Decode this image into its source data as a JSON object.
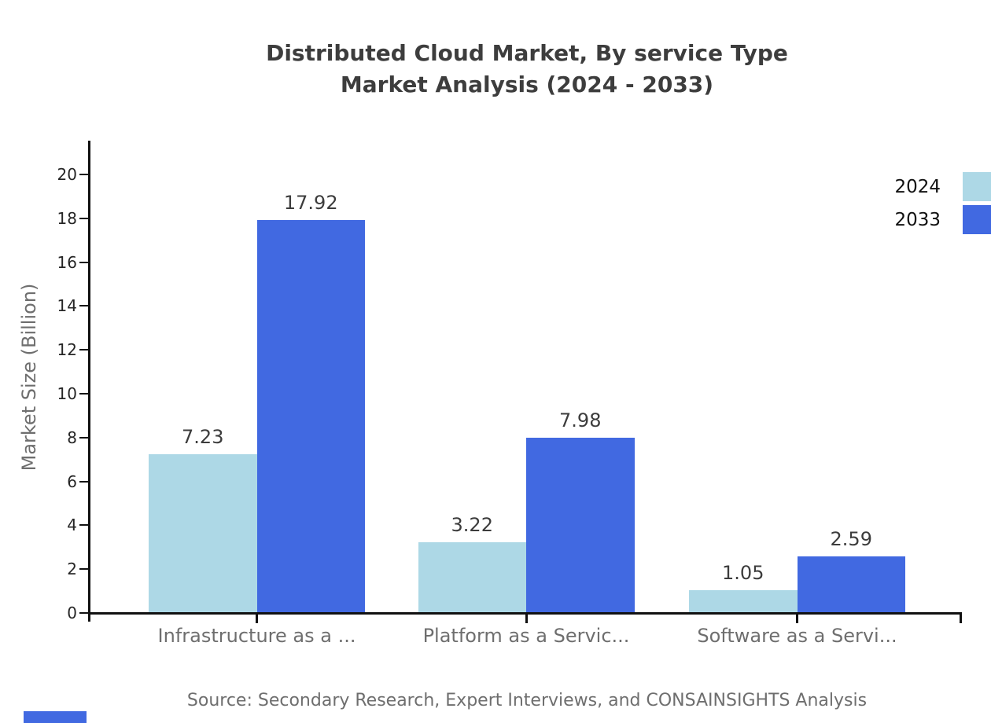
{
  "title": {
    "line1": "Distributed Cloud Market, By service Type",
    "line2": "Market Analysis (2024 - 2033)"
  },
  "chart_data": {
    "type": "bar",
    "title": "Distributed Cloud Market, By service Type Market Analysis (2024 - 2033)",
    "categories": [
      "Infrastructure as a ...",
      "Platform as a Servic...",
      "Software as a Servi..."
    ],
    "series": [
      {
        "name": "2024",
        "color": "#ADD8E6",
        "values": [
          7.23,
          3.22,
          1.05
        ]
      },
      {
        "name": "2033",
        "color": "#4169E1",
        "values": [
          17.92,
          7.98,
          2.59
        ]
      }
    ],
    "xlabel": "",
    "ylabel": "Market Size (Billion)",
    "ylim": [
      0,
      20
    ],
    "yticks": [
      0,
      2,
      4,
      6,
      8,
      10,
      12,
      14,
      16,
      18,
      20
    ],
    "grid": false,
    "legend_position": "top-right",
    "value_labels_shown": true
  },
  "source_note": "Source: Secondary Research, Expert Interviews, and CONSAINSIGHTS Analysis",
  "colors": {
    "series_2024": "#ADD8E6",
    "series_2033": "#4169E1",
    "title_text": "#3d3d3d",
    "axis_line": "#111111",
    "tick_label_text": "#262626",
    "value_label_text": "#3c3c3c",
    "muted_text": "#6e6e6e",
    "background": "#ffffff",
    "brand_mark": "#4169E1"
  }
}
